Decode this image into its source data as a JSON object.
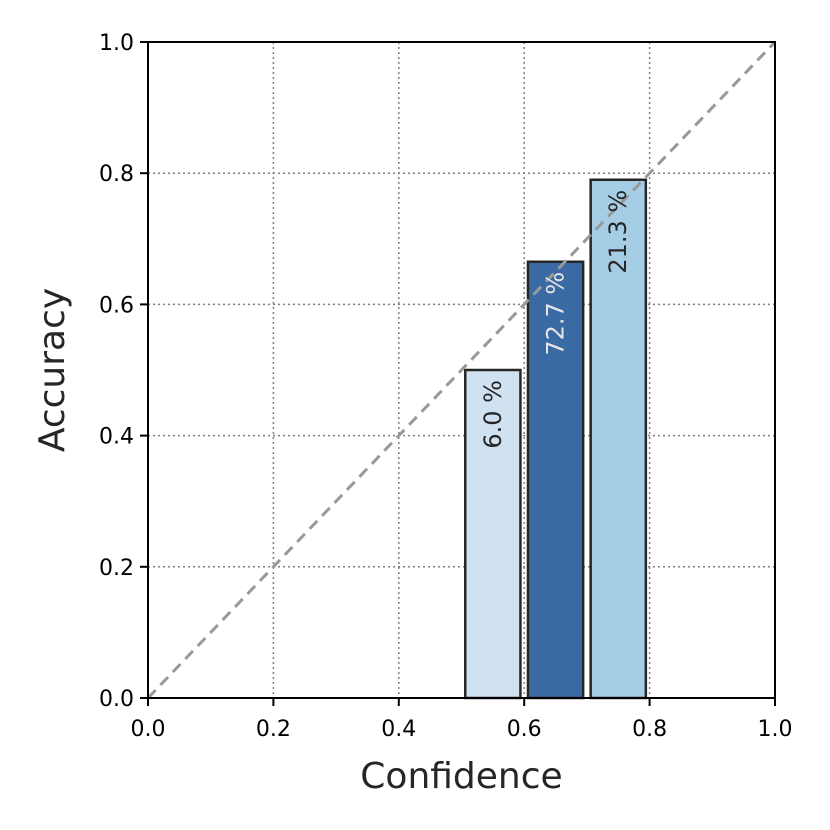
{
  "chart_data": {
    "type": "bar",
    "title": "",
    "xlabel": "Confidence",
    "ylabel": "Accuracy",
    "xlim": [
      0.0,
      1.0
    ],
    "ylim": [
      0.0,
      1.0
    ],
    "x_ticks": [
      "0.0",
      "0.2",
      "0.4",
      "0.6",
      "0.8",
      "1.0"
    ],
    "y_ticks": [
      "0.0",
      "0.2",
      "0.4",
      "0.6",
      "0.8",
      "1.0"
    ],
    "grid": true,
    "grid_style": "dotted",
    "diagonal_reference": true,
    "diagonal_color": "#999999",
    "bins": [
      {
        "start": 0.5,
        "end": 0.6,
        "accuracy": 0.5,
        "label": "6.0 %",
        "color": "#d0e1f2",
        "label_color": "#262626"
      },
      {
        "start": 0.6,
        "end": 0.7,
        "accuracy": 0.665,
        "label": "72.7 %",
        "color": "#3a6aa4",
        "label_color": "#e6e6e6"
      },
      {
        "start": 0.7,
        "end": 0.8,
        "accuracy": 0.79,
        "label": "21.3 %",
        "color": "#a6cde6",
        "label_color": "#262626"
      }
    ]
  }
}
